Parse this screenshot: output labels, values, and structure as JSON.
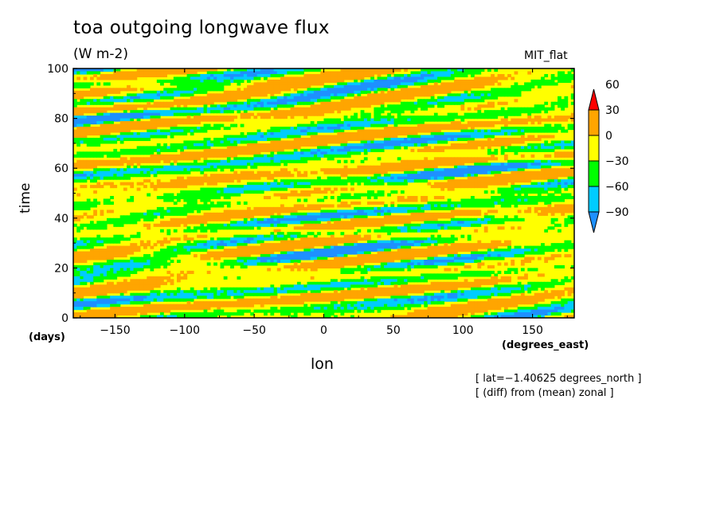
{
  "chart_data": {
    "type": "heatmap",
    "title": "toa outgoing longwave flux",
    "subtitle": "(W m-2)",
    "model_label": "MIT_flat",
    "xlabel": "lon",
    "x_units": "(degrees_east)",
    "ylabel": "time",
    "y_units": "(days)",
    "xlim": [
      -180,
      180
    ],
    "ylim": [
      0,
      100
    ],
    "x_ticks": [
      -150,
      -100,
      -50,
      0,
      50,
      100,
      150
    ],
    "x_tick_labels": [
      "−150",
      "−100",
      "−50",
      "0",
      "50",
      "100",
      "150"
    ],
    "y_ticks": [
      0,
      20,
      40,
      60,
      80,
      100
    ],
    "y_tick_labels": [
      "0",
      "20",
      "40",
      "60",
      "80",
      "100"
    ],
    "color_levels": [
      {
        "label": "−90",
        "color": "#1e90ff"
      },
      {
        "label": "−60",
        "color": "#00ffff"
      },
      {
        "label": "−30",
        "color": "#00e600"
      },
      {
        "label": "0",
        "color": "#ffff00"
      },
      {
        "label": "30",
        "color": "#ffa500"
      },
      {
        "label": "60",
        "color": "#ff0000"
      }
    ],
    "colorbar_bins": [
      "#1e90ff",
      "#00ccff",
      "#00ff00",
      "#ffff00",
      "#ffa500",
      "#ff0000"
    ],
    "notes": [
      "[ lat=−1.40625 degrees_north ]",
      "[ (diff) from (mean) zonal ]"
    ],
    "grid": false
  }
}
